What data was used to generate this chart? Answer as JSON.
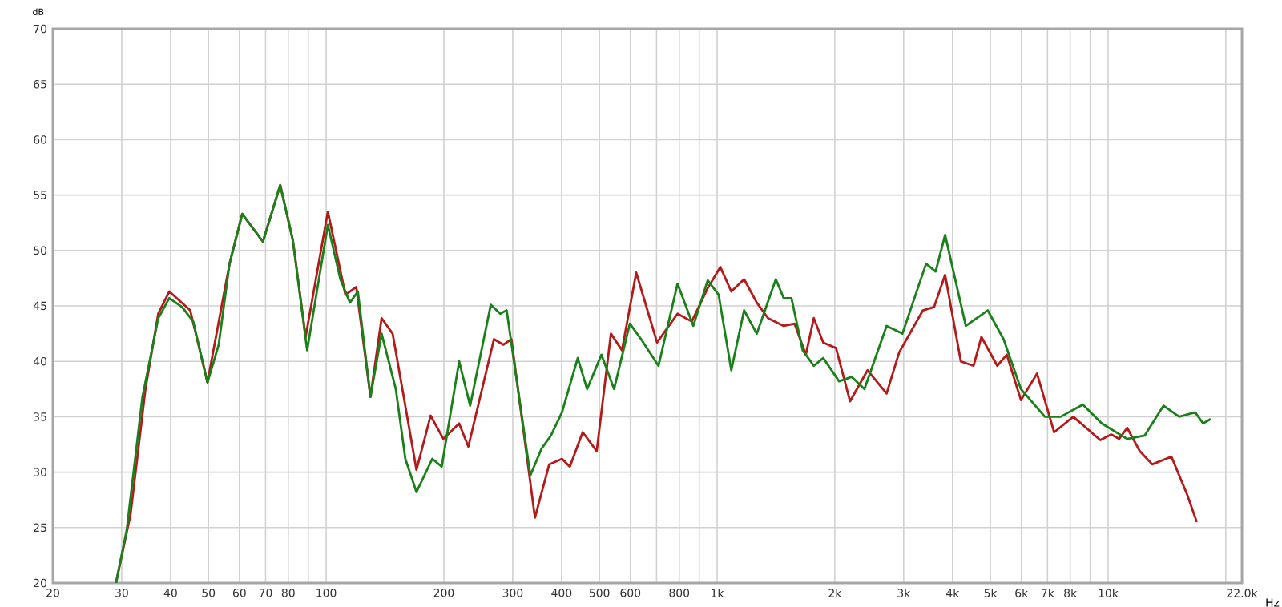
{
  "chart_data": {
    "type": "line",
    "xlabel": "Hz",
    "ylabel": "dB",
    "log": "x",
    "grid": true,
    "xlim": [
      20,
      22000
    ],
    "ylim": [
      20,
      70
    ],
    "xticks": [
      20,
      30,
      40,
      50,
      60,
      70,
      80,
      {
        "value": 90,
        "label": null
      },
      100,
      200,
      300,
      400,
      500,
      600,
      {
        "value": 700,
        "label": null
      },
      800,
      {
        "value": 900,
        "label": null
      },
      {
        "value": 1000,
        "label": "1k"
      },
      {
        "value": 2000,
        "label": "2k"
      },
      {
        "value": 3000,
        "label": "3k"
      },
      {
        "value": 4000,
        "label": "4k"
      },
      {
        "value": 5000,
        "label": "5k"
      },
      {
        "value": 6000,
        "label": "6k"
      },
      {
        "value": 7000,
        "label": "7k"
      },
      {
        "value": 8000,
        "label": "8k"
      },
      {
        "value": 9000,
        "label": null
      },
      {
        "value": 10000,
        "label": "10k"
      },
      {
        "value": 20000,
        "label": null
      },
      {
        "value": 22000,
        "label": "22.0k"
      }
    ],
    "yticks": [
      20,
      25,
      30,
      35,
      40,
      45,
      50,
      55,
      60,
      65,
      70
    ],
    "series": [
      {
        "color": "#b41a1a",
        "x": [
          29,
          31.6,
          34.5,
          37.2,
          39.7,
          44.9,
          49.7,
          56.6,
          61,
          68.9,
          76.3,
          82.2,
          88.6,
          101,
          112,
          119.4,
          129.8,
          138.6,
          147.9,
          157.9,
          170.2,
          185,
          199.5,
          218.8,
          231,
          268.6,
          284,
          297.7,
          342,
          372,
          401,
          420,
          453,
          492,
          535,
          571,
          621,
          702,
          792,
          861,
          946,
          1019,
          1087,
          1172,
          1263,
          1349,
          1480,
          1578,
          1686,
          1767,
          1868,
          2014,
          2188,
          2425,
          2713,
          2921,
          3360,
          3589,
          3830,
          4201,
          4528,
          4742,
          5207,
          5506,
          5986,
          6580,
          7278,
          8147,
          9550,
          10190,
          10670,
          11190,
          12050,
          12970,
          14520,
          15920,
          16860
        ],
        "values": [
          20,
          26.2,
          37.5,
          44.3,
          46.3,
          44.6,
          38.1,
          48.8,
          53.3,
          50.8,
          55.9,
          50.9,
          42.2,
          53.5,
          46,
          46.7,
          36.8,
          43.9,
          42.5,
          36.8,
          30.2,
          35.1,
          33,
          34.4,
          32.3,
          42,
          41.5,
          42,
          25.9,
          30.7,
          31.2,
          30.5,
          33.6,
          31.9,
          42.5,
          41,
          48,
          41.7,
          44.3,
          43.6,
          46.6,
          48.5,
          46.3,
          47.4,
          45.3,
          43.9,
          43.2,
          43.4,
          40.6,
          43.9,
          41.7,
          41.2,
          36.4,
          39.2,
          37.1,
          40.8,
          44.6,
          44.9,
          47.8,
          40,
          39.6,
          42.2,
          39.6,
          40.6,
          36.5,
          38.9,
          33.6,
          35,
          32.9,
          33.4,
          33,
          34,
          31.9,
          30.7,
          31.4,
          28,
          25.5
        ]
      },
      {
        "color": "#1a801a",
        "x": [
          29,
          30.9,
          33.9,
          37.2,
          39.7,
          42.8,
          45.7,
          49.7,
          53.1,
          56.6,
          61,
          68.9,
          76.3,
          82.2,
          89.4,
          101,
          108.7,
          115,
          120.5,
          129.8,
          138.6,
          150.7,
          159.4,
          170.2,
          186.8,
          197.5,
          218.8,
          233.5,
          263.6,
          278.8,
          289.5,
          332.8,
          355.3,
          375.7,
          401,
          440,
          465,
          506,
          545,
          598,
          639,
          708,
          792,
          869,
          946,
          1009,
          1087,
          1172,
          1263,
          1413,
          1480,
          1549,
          1655,
          1767,
          1868,
          2051,
          2208,
          2381,
          2713,
          2978,
          3423,
          3622,
          3830,
          4325,
          4921,
          5403,
          5986,
          6891,
          7568,
          8616,
          9637,
          11190,
          12400,
          13860,
          15200,
          16700,
          17500,
          18300
        ],
        "values": [
          20,
          24.8,
          36.8,
          43.9,
          45.7,
          44.9,
          43.6,
          38.1,
          41.5,
          48.8,
          53.3,
          50.8,
          55.9,
          50.9,
          41,
          52.3,
          47.4,
          45.3,
          46.3,
          36.8,
          42.5,
          37.5,
          31.2,
          28.2,
          31.2,
          30.5,
          40,
          36,
          45.1,
          44.3,
          44.6,
          29.7,
          32.1,
          33.3,
          35.4,
          40.3,
          37.5,
          40.6,
          37.5,
          43.4,
          42,
          39.6,
          47,
          43.2,
          47.3,
          46,
          39.2,
          44.6,
          42.5,
          47.4,
          45.7,
          45.7,
          41,
          39.6,
          40.3,
          38.2,
          38.6,
          37.5,
          43.2,
          42.5,
          48.8,
          48.1,
          51.4,
          43.2,
          44.6,
          42,
          37.5,
          35,
          35,
          36.1,
          34.4,
          33,
          33.3,
          36,
          35,
          35.4,
          34.4,
          34.8
        ]
      }
    ]
  }
}
